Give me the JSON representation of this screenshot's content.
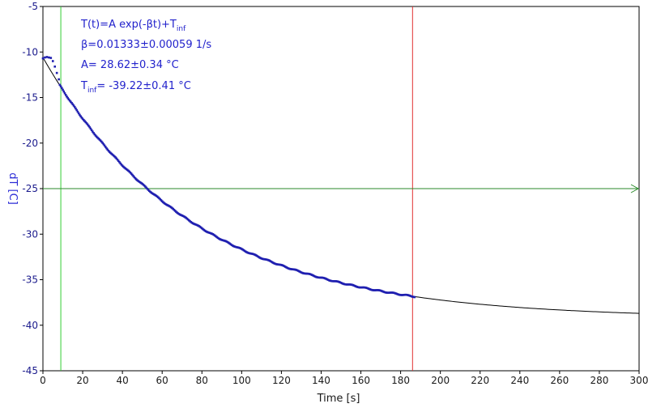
{
  "chart_data": {
    "type": "scatter",
    "xlabel": "Time [s]",
    "ylabel": "dT [C]",
    "xlim": [
      0,
      300
    ],
    "ylim": [
      -45,
      -5
    ],
    "x_ticks": [
      0,
      20,
      40,
      60,
      80,
      100,
      120,
      140,
      160,
      180,
      200,
      220,
      240,
      260,
      280,
      300
    ],
    "y_ticks": [
      -5,
      -10,
      -15,
      -20,
      -25,
      -30,
      -35,
      -40,
      -45
    ],
    "fit": {
      "model": "exponential",
      "A": 28.62,
      "beta": 0.01333,
      "T_inf": -39.22,
      "x_start": 0,
      "x_end": 300,
      "line1": {
        "main": "T(t)=A exp(-βt)+T",
        "sub": "inf"
      },
      "line2": "β=0.01333±0.00059 1/s",
      "line3": "A= 28.62±0.34 °C",
      "line4": {
        "pre": "T",
        "sub": "inf",
        "post": "= -39.22±0.41 °C"
      }
    },
    "measured": {
      "x_start": 0,
      "x_end": 187,
      "step": 0.5,
      "initial_plateau": [
        [
          0,
          -10.7
        ],
        [
          1,
          -10.6
        ],
        [
          2,
          -10.55
        ],
        [
          3,
          -10.6
        ],
        [
          4,
          -10.65
        ],
        [
          5,
          -11.0
        ],
        [
          6,
          -11.6
        ],
        [
          7,
          -12.3
        ],
        [
          8,
          -13.0
        ]
      ]
    },
    "markers": {
      "green_vertical_x": 9,
      "red_vertical_x": 186,
      "horizontal_y": -25
    },
    "colors": {
      "data_points": "#1f1fb0",
      "fit_line": "#000000",
      "green_line": "#33cc33",
      "red_line": "#e03030",
      "horizontal_line": "#2a8a2a",
      "axis": "#000000",
      "label_blue": "#2222cc"
    }
  }
}
